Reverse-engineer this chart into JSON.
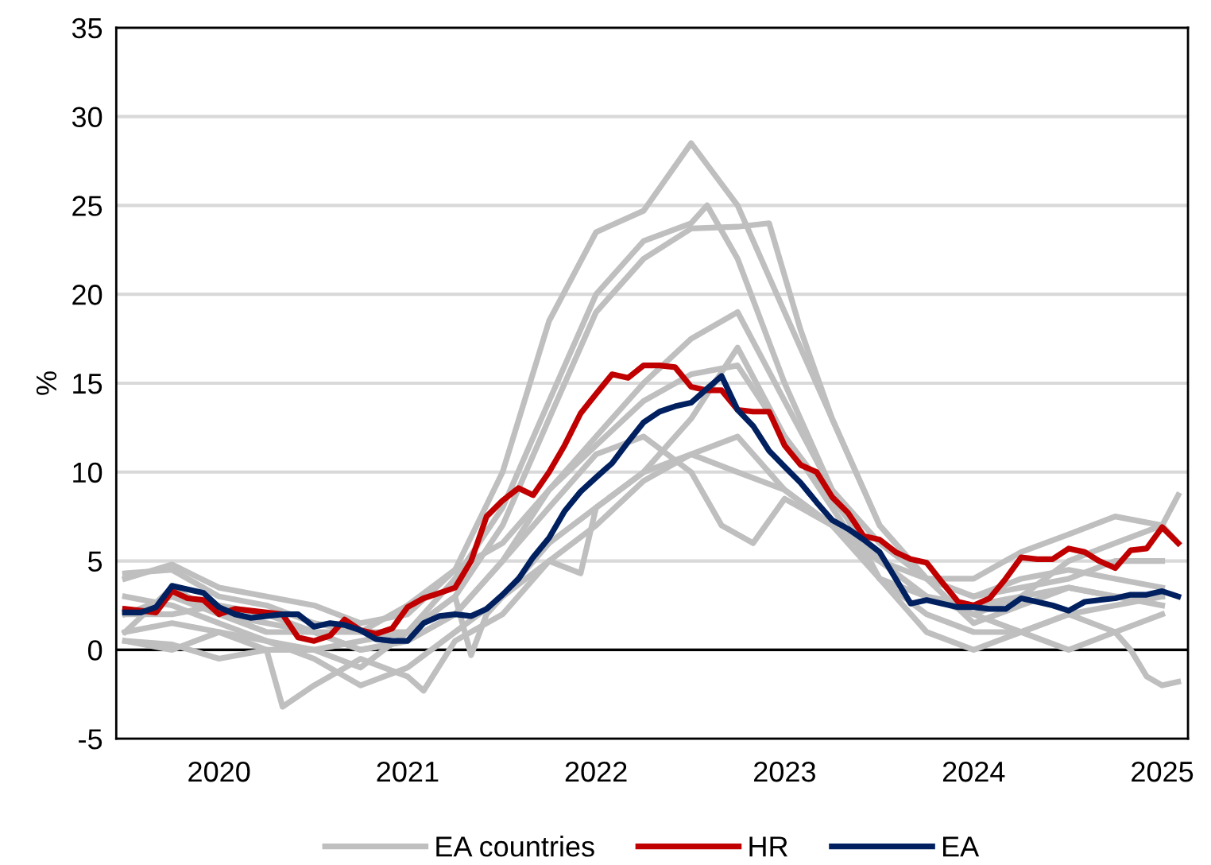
{
  "chart_data": {
    "type": "line",
    "ylabel": "%",
    "xlim": [
      "2019-12-15",
      "2025-08-20"
    ],
    "ylim": [
      -5,
      35
    ],
    "yticks": [
      -5,
      0,
      5,
      10,
      15,
      20,
      25,
      30,
      35
    ],
    "xticks": [
      {
        "value": "2020-07-01",
        "label": "2020"
      },
      {
        "value": "2021-07-01",
        "label": "2021"
      },
      {
        "value": "2022-07-01",
        "label": "2022"
      },
      {
        "value": "2023-07-01",
        "label": "2023"
      },
      {
        "value": "2024-07-01",
        "label": "2024"
      },
      {
        "value": "2025-07-01",
        "label": "2025"
      }
    ],
    "grid": "y",
    "legend": "bottom",
    "marker": "none",
    "line_style": "solid",
    "ref_lines": [
      {
        "axis": "y",
        "value": 0,
        "color": "#000000"
      }
    ],
    "x": [
      "2020-01",
      "2020-02",
      "2020-03",
      "2020-04",
      "2020-05",
      "2020-06",
      "2020-07",
      "2020-08",
      "2020-09",
      "2020-10",
      "2020-11",
      "2020-12",
      "2021-01",
      "2021-02",
      "2021-03",
      "2021-04",
      "2021-05",
      "2021-06",
      "2021-07",
      "2021-08",
      "2021-09",
      "2021-10",
      "2021-11",
      "2021-12",
      "2022-01",
      "2022-02",
      "2022-03",
      "2022-04",
      "2022-05",
      "2022-06",
      "2022-07",
      "2022-08",
      "2022-09",
      "2022-10",
      "2022-11",
      "2022-12",
      "2023-01",
      "2023-02",
      "2023-03",
      "2023-04",
      "2023-05",
      "2023-06",
      "2023-07",
      "2023-08",
      "2023-09",
      "2023-10",
      "2023-11",
      "2023-12",
      "2024-01",
      "2024-02",
      "2024-03",
      "2024-04",
      "2024-05",
      "2024-06",
      "2024-07",
      "2024-08",
      "2024-09",
      "2024-10",
      "2024-11",
      "2024-12",
      "2025-01",
      "2025-02",
      "2025-03",
      "2025-04",
      "2025-05",
      "2025-06",
      "2025-07",
      "2025-08"
    ],
    "series": [
      {
        "name": "EA countries",
        "color": "#bfbfbf",
        "x": [
          "2020-01",
          "2020-04",
          "2020-07",
          "2020-10",
          "2021-01",
          "2021-04",
          "2021-07",
          "2021-10",
          "2022-01",
          "2022-04",
          "2022-07",
          "2022-10",
          "2023-01",
          "2023-04",
          "2023-07",
          "2023-10",
          "2024-01",
          "2024-04",
          "2024-07",
          "2024-10",
          "2025-01",
          "2025-04",
          "2025-07"
        ],
        "values": [
          4.3,
          4.5,
          3.0,
          2.5,
          1.5,
          1.0,
          2.5,
          4.5,
          10,
          18.5,
          23.5,
          24.7,
          28.5,
          25,
          19,
          13,
          7,
          4,
          1.5,
          2.5,
          3.5,
          3,
          3
        ]
      },
      {
        "color": "#bfbfbf",
        "x": [
          "2020-01",
          "2020-04",
          "2020-07",
          "2020-10",
          "2021-01",
          "2021-04",
          "2021-07",
          "2021-10",
          "2022-01",
          "2022-04",
          "2022-07",
          "2022-10",
          "2023-01",
          "2023-02",
          "2023-04",
          "2023-07",
          "2023-10",
          "2024-01",
          "2024-04",
          "2024-07",
          "2024-10",
          "2025-01",
          "2025-04",
          "2025-07"
        ],
        "values": [
          3,
          2.5,
          1.5,
          0.5,
          0,
          -1,
          1,
          4,
          8,
          14,
          20,
          23,
          24,
          25,
          22,
          15,
          9,
          4,
          1,
          0,
          1,
          2,
          2.5,
          3
        ]
      },
      {
        "color": "#bfbfbf",
        "x": [
          "2020-01",
          "2020-04",
          "2020-07",
          "2020-10",
          "2021-01",
          "2021-04",
          "2021-07",
          "2021-10",
          "2022-01",
          "2022-04",
          "2022-07",
          "2022-10",
          "2023-01",
          "2023-04",
          "2023-06",
          "2023-08",
          "2023-10",
          "2024-01",
          "2024-04",
          "2024-07",
          "2024-10",
          "2025-01",
          "2025-04",
          "2025-07"
        ],
        "values": [
          1,
          1.5,
          1,
          0,
          0,
          0.5,
          1,
          3,
          7,
          13,
          19,
          22,
          23.7,
          23.8,
          24,
          18,
          13,
          7,
          4,
          3,
          4,
          4.5,
          4,
          3.5
        ]
      },
      {
        "color": "#bfbfbf",
        "x": [
          "2020-01",
          "2020-04",
          "2020-07",
          "2020-10",
          "2021-01",
          "2021-04",
          "2021-07",
          "2021-10",
          "2022-01",
          "2022-04",
          "2022-07",
          "2022-10",
          "2023-01",
          "2023-04",
          "2023-07",
          "2023-10",
          "2024-01",
          "2024-04",
          "2024-07",
          "2024-10",
          "2025-01",
          "2025-04",
          "2025-07"
        ],
        "values": [
          2,
          3,
          2,
          1.5,
          1,
          0,
          0.5,
          2,
          5,
          9,
          12,
          15,
          17.5,
          19,
          14,
          9,
          6,
          4,
          3,
          3.5,
          4,
          5,
          5
        ]
      },
      {
        "color": "#bfbfbf",
        "x": [
          "2020-01",
          "2020-04",
          "2020-07",
          "2020-10",
          "2021-01",
          "2021-04",
          "2021-07",
          "2021-10",
          "2022-01",
          "2022-04",
          "2022-07",
          "2022-10",
          "2023-01",
          "2023-04",
          "2023-07",
          "2023-10",
          "2024-01",
          "2024-04",
          "2024-07",
          "2024-10",
          "2025-01",
          "2025-04",
          "2025-05",
          "2025-06",
          "2025-07",
          "2025-08"
        ],
        "values": [
          0.5,
          0,
          1,
          0.5,
          -0.5,
          -2,
          -1,
          1,
          3,
          6,
          8,
          10,
          11,
          12,
          9,
          7,
          4,
          2,
          1,
          1,
          2,
          1,
          0,
          -1.5,
          -2,
          -1.8
        ]
      },
      {
        "color": "#bfbfbf",
        "x": [
          "2020-01",
          "2020-04",
          "2020-07",
          "2020-10",
          "2021-01",
          "2021-04",
          "2021-07",
          "2021-10",
          "2022-01",
          "2022-04",
          "2022-07",
          "2022-10",
          "2023-01",
          "2023-03",
          "2023-05",
          "2023-07",
          "2023-10",
          "2024-01",
          "2024-04",
          "2024-07",
          "2024-10",
          "2025-01",
          "2025-04",
          "2025-07"
        ],
        "values": [
          2,
          2,
          2.5,
          2,
          1,
          0,
          0.5,
          2,
          5,
          8,
          11,
          12,
          10,
          7,
          6,
          8.5,
          7,
          5,
          3,
          2,
          1,
          0,
          1,
          2
        ]
      },
      {
        "color": "#bfbfbf",
        "x": [
          "2020-01",
          "2020-04",
          "2020-07",
          "2020-10",
          "2021-01",
          "2021-04",
          "2021-07",
          "2021-10",
          "2021-11",
          "2021-12",
          "2022-01",
          "2022-04",
          "2022-06",
          "2022-07",
          "2022-10",
          "2023-01",
          "2023-04",
          "2023-07",
          "2023-10",
          "2024-01",
          "2024-04",
          "2024-07",
          "2024-10",
          "2025-01",
          "2025-04",
          "2025-07",
          "2025-08"
        ],
        "values": [
          1,
          3.5,
          2,
          1,
          1,
          1,
          1,
          3,
          -0.3,
          2,
          3,
          5,
          4.3,
          8,
          10,
          13,
          17,
          12,
          8,
          4,
          3,
          2,
          3,
          5,
          6,
          7,
          8.7
        ]
      },
      {
        "color": "#bfbfbf",
        "x": [
          "2020-01",
          "2020-04",
          "2020-07",
          "2020-10",
          "2020-11",
          "2021-01",
          "2021-04",
          "2021-07",
          "2021-08",
          "2021-10",
          "2022-01",
          "2022-04",
          "2022-07",
          "2022-10",
          "2023-01",
          "2023-04",
          "2023-07",
          "2023-10",
          "2024-01",
          "2024-04",
          "2024-07",
          "2024-10",
          "2025-01",
          "2025-04",
          "2025-07"
        ],
        "values": [
          0.5,
          0.3,
          -0.5,
          0,
          -3.2,
          -2,
          -0.5,
          -1.5,
          -2.3,
          0.5,
          2,
          5,
          7,
          9.5,
          11,
          10,
          9,
          7,
          5,
          3,
          2.5,
          3,
          3.5,
          3,
          2.5
        ]
      },
      {
        "color": "#bfbfbf",
        "x": [
          "2020-01",
          "2020-04",
          "2020-07",
          "2020-10",
          "2021-01",
          "2021-04",
          "2021-07",
          "2021-10",
          "2022-01",
          "2022-04",
          "2022-07",
          "2022-10",
          "2023-01",
          "2023-04",
          "2023-07",
          "2023-10",
          "2024-01",
          "2024-04",
          "2024-07",
          "2024-10",
          "2025-01",
          "2025-04",
          "2025-07",
          "2025-08"
        ],
        "values": [
          4,
          4.8,
          3.5,
          3,
          2.5,
          1.5,
          2,
          4.5,
          6,
          9,
          11.5,
          14,
          15.5,
          16,
          12,
          8.5,
          5,
          4,
          4,
          5.5,
          6.5,
          7.5,
          7,
          6
        ]
      },
      {
        "name": "HR",
        "color": "#c00000",
        "values": [
          2.3,
          2.2,
          2.1,
          3.3,
          2.9,
          2.8,
          2.0,
          2.3,
          2.2,
          2.1,
          2.0,
          0.7,
          0.5,
          0.8,
          1.7,
          1.1,
          0.9,
          1.2,
          2.4,
          2.9,
          3.2,
          3.5,
          5.0,
          7.5,
          8.4,
          9.1,
          8.7,
          10.0,
          11.5,
          13.3,
          14.4,
          15.5,
          15.3,
          16.0,
          16.0,
          15.9,
          14.8,
          14.6,
          14.6,
          13.5,
          13.4,
          13.4,
          11.5,
          10.4,
          10.0,
          8.6,
          7.7,
          6.4,
          6.2,
          5.5,
          5.1,
          4.9,
          3.8,
          2.7,
          2.5,
          2.9,
          4.0,
          5.2,
          5.1,
          5.1,
          5.7,
          5.5,
          5.0,
          4.6,
          5.6,
          5.7,
          6.9,
          6.0
        ]
      },
      {
        "name": "EA",
        "color": "#002060",
        "values": [
          2.1,
          2.1,
          2.4,
          3.6,
          3.4,
          3.2,
          2.4,
          2.0,
          1.8,
          1.9,
          2.0,
          2.0,
          1.3,
          1.5,
          1.4,
          1.1,
          0.6,
          0.5,
          0.5,
          1.5,
          1.9,
          2.0,
          1.9,
          2.3,
          3.1,
          4.0,
          5.2,
          6.3,
          7.8,
          8.9,
          9.7,
          10.5,
          11.7,
          12.8,
          13.4,
          13.7,
          13.9,
          14.7,
          15.4,
          13.5,
          12.6,
          11.2,
          10.3,
          9.4,
          8.3,
          7.3,
          6.8,
          6.2,
          5.5,
          4.0,
          2.6,
          2.8,
          2.6,
          2.4,
          2.4,
          2.3,
          2.3,
          2.9,
          2.7,
          2.5,
          2.2,
          2.7,
          2.8,
          2.9,
          3.1,
          3.1,
          3.3,
          3.0
        ]
      }
    ]
  }
}
